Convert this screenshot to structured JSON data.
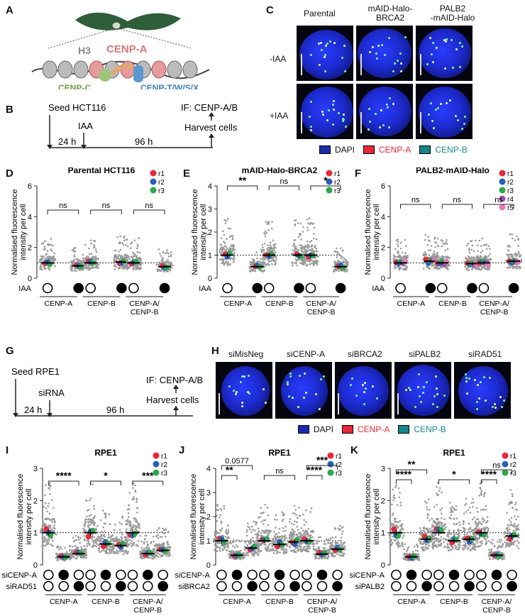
{
  "panels": {
    "A": {
      "letter": "A",
      "h3": "H3",
      "cenpa": "CENP-A",
      "cenpc": "CENP-C",
      "cenpt": "CENP-T/W/S/X"
    },
    "B": {
      "letter": "B",
      "seed": "Seed HCT116",
      "iaa": "IAA",
      "t1": "24 h",
      "t2": "96 h",
      "if": "IF: CENP-A/B",
      "harvest": "Harvest cells"
    },
    "C": {
      "letter": "C",
      "cols": [
        "Parental",
        "mAID-Halo-\nBRCA2",
        "PALB2\n-mAID-Halo"
      ],
      "rows": [
        "-IAA",
        "+IAA"
      ],
      "legend": [
        "DAPI",
        "CENP-A",
        "CENP-B"
      ]
    },
    "G": {
      "letter": "G",
      "seed": "Seed RPE1",
      "sirna": "siRNA",
      "t1": "24 h",
      "t2": "96 h",
      "if": "IF: CENP-A/B",
      "harvest": "Harvest cells"
    },
    "H": {
      "letter": "H",
      "cols": [
        "siMisNeg",
        "siCENP-A",
        "siBRCA2",
        "siPALB2",
        "siRAD51"
      ],
      "legend": [
        "DAPI",
        "CENP-A",
        "CENP-B"
      ]
    }
  },
  "colors": {
    "dapi": "#1a2bb0",
    "cenpa": "#e8263a",
    "cenpb": "#17868a",
    "r1": "#e8263a",
    "r2": "#2a5fb8",
    "r3": "#2aa84a",
    "r4": "#9b4fb0",
    "r5": "#e879b8",
    "dots": "#9a9a9a"
  },
  "chart_data": [
    {
      "id": "D",
      "type": "scatter",
      "letter": "D",
      "title": "Parental HCT116",
      "ylabel": "Normalised fluorescence\nintensity per cell",
      "ylim": [
        0,
        6
      ],
      "yticks": [
        0,
        2,
        4,
        6
      ],
      "groups": [
        "CENP-A",
        "CENP-B",
        "CENP-A/\nCENP-B"
      ],
      "row_labels": [
        "IAA"
      ],
      "conditions": [
        [
          0,
          1
        ],
        [
          0,
          1
        ],
        [
          0,
          1
        ]
      ],
      "means": [
        [
          1.0,
          0.8
        ],
        [
          1.0,
          1.05
        ],
        [
          1.0,
          0.75
        ]
      ],
      "replicates": [
        "r1",
        "r2",
        "r3"
      ],
      "significance": [
        {
          "label": "ns",
          "group": 0
        },
        {
          "label": "ns",
          "group": 1
        },
        {
          "label": "ns",
          "group": 2
        }
      ]
    },
    {
      "id": "E",
      "type": "scatter",
      "letter": "E",
      "title": "mAID-Halo-BRCA2",
      "ylabel": "Normalised fluorescence\nintensity per cell",
      "ylim": [
        0,
        4
      ],
      "yticks": [
        0,
        1,
        2,
        3,
        4
      ],
      "groups": [
        "CENP-A",
        "CENP-B",
        "CENP-A/\nCENP-B"
      ],
      "row_labels": [
        "IAA"
      ],
      "conditions": [
        [
          0,
          1
        ],
        [
          0,
          1
        ],
        [
          0,
          1
        ]
      ],
      "means": [
        [
          1.0,
          0.5
        ],
        [
          1.0,
          1.0
        ],
        [
          1.0,
          0.5
        ]
      ],
      "replicates": [
        "r1",
        "r2",
        "r3"
      ],
      "significance": [
        {
          "label": "**",
          "group": 0
        },
        {
          "label": "ns",
          "group": 1
        },
        {
          "label": "*",
          "group": 2
        }
      ]
    },
    {
      "id": "F",
      "type": "scatter",
      "letter": "F",
      "title": "PALB2-mAID-Halo",
      "ylabel": "Normalised fluorescence\nintensity per cell",
      "ylim": [
        0,
        6
      ],
      "yticks": [
        0,
        2,
        4,
        6
      ],
      "groups": [
        "CENP-A",
        "CENP-B",
        "CENP-A/\nCENP-B"
      ],
      "row_labels": [
        "IAA"
      ],
      "conditions": [
        [
          0,
          1
        ],
        [
          0,
          1
        ],
        [
          0,
          1
        ]
      ],
      "means": [
        [
          1.0,
          1.1
        ],
        [
          1.0,
          0.95
        ],
        [
          1.0,
          1.1
        ]
      ],
      "replicates": [
        "r1",
        "r2",
        "r3",
        "r4",
        "r5"
      ],
      "significance": [
        {
          "label": "ns",
          "group": 0
        },
        {
          "label": "ns",
          "group": 1
        },
        {
          "label": "ns",
          "group": 2
        }
      ]
    },
    {
      "id": "I",
      "type": "scatter",
      "letter": "I",
      "title": "RPE1",
      "ylabel": "Normalised fluorescence\nintensity per cell",
      "ylim": [
        0,
        3
      ],
      "yticks": [
        0,
        1,
        2,
        3
      ],
      "groups": [
        "CENP-A",
        "CENP-B",
        "CENP-A/\nCENP-B"
      ],
      "row_labels": [
        "siCENP-A",
        "siRAD51"
      ],
      "conditions": [
        [
          [
            0,
            0
          ],
          [
            1,
            0
          ],
          [
            0,
            1
          ]
        ],
        [
          [
            0,
            0
          ],
          [
            1,
            0
          ],
          [
            0,
            1
          ]
        ],
        [
          [
            0,
            0
          ],
          [
            1,
            0
          ],
          [
            0,
            1
          ]
        ]
      ],
      "means": [
        [
          1.0,
          0.25,
          0.35
        ],
        [
          1.0,
          0.65,
          0.6
        ],
        [
          1.0,
          0.35,
          0.45
        ]
      ],
      "replicates": [
        "r1",
        "r2",
        "r3"
      ],
      "significance": [
        {
          "label": "****",
          "group": 0
        },
        {
          "label": "*",
          "group": 1
        },
        {
          "label": "***",
          "group": 2
        }
      ]
    },
    {
      "id": "J",
      "type": "scatter",
      "letter": "J",
      "title": "RPE1",
      "ylabel": "Normalised fluorescence\nintensity per cell",
      "ylim": [
        0,
        4
      ],
      "yticks": [
        0,
        1,
        2,
        3,
        4
      ],
      "groups": [
        "CENP-A",
        "CENP-B",
        "CENP-A/\nCENP-B"
      ],
      "row_labels": [
        "siCENP-A",
        "siBRCA2"
      ],
      "conditions": [
        [
          [
            0,
            0
          ],
          [
            1,
            0
          ],
          [
            0,
            1
          ]
        ],
        [
          [
            0,
            0
          ],
          [
            1,
            0
          ],
          [
            0,
            1
          ]
        ],
        [
          [
            0,
            0
          ],
          [
            1,
            0
          ],
          [
            0,
            1
          ]
        ]
      ],
      "means": [
        [
          1.0,
          0.4,
          0.7
        ],
        [
          1.0,
          0.85,
          0.95
        ],
        [
          1.0,
          0.45,
          0.65
        ]
      ],
      "replicates": [
        "r1",
        "r2",
        "r3"
      ],
      "significance": [
        {
          "label": "**",
          "group": 0
        },
        {
          "label": "0.0577",
          "group": 0
        },
        {
          "label": "ns",
          "group": 1
        },
        {
          "label": "****",
          "group": 2
        },
        {
          "label": "***",
          "group": 2
        }
      ]
    },
    {
      "id": "K",
      "type": "scatter",
      "letter": "K",
      "title": "RPE1",
      "ylabel": "Normalised fluorescence\nintensity per cell",
      "ylim": [
        0,
        3
      ],
      "yticks": [
        0,
        1,
        2,
        3
      ],
      "groups": [
        "CENP-A",
        "CENP-B",
        "CENP-A/\nCENP-B"
      ],
      "row_labels": [
        "siCENP-A",
        "siPALB2"
      ],
      "conditions": [
        [
          [
            0,
            0
          ],
          [
            1,
            0
          ],
          [
            0,
            1
          ]
        ],
        [
          [
            0,
            0
          ],
          [
            1,
            0
          ],
          [
            0,
            1
          ]
        ],
        [
          [
            0,
            0
          ],
          [
            1,
            0
          ],
          [
            0,
            1
          ]
        ]
      ],
      "means": [
        [
          1.0,
          0.25,
          0.8
        ],
        [
          1.0,
          0.75,
          0.8
        ],
        [
          1.0,
          0.3,
          0.9
        ]
      ],
      "replicates": [
        "r1",
        "r2",
        "r3"
      ],
      "significance": [
        {
          "label": "****",
          "group": 0
        },
        {
          "label": "**",
          "group": 0
        },
        {
          "label": "*",
          "group": 1
        },
        {
          "label": "****",
          "group": 2
        },
        {
          "label": "ns",
          "group": 2
        }
      ]
    }
  ]
}
